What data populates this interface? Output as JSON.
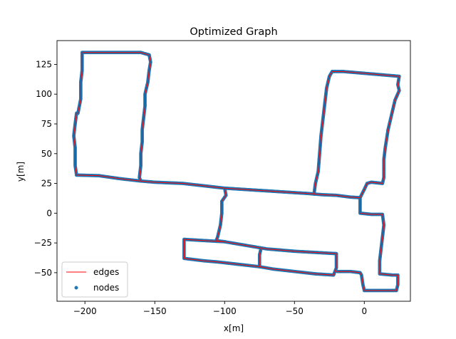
{
  "chart_data": {
    "type": "scatter",
    "title": "Optimized Graph",
    "xlabel": "x[m]",
    "ylabel": "y[m]",
    "xlim": [
      -220,
      33
    ],
    "ylim": [
      -74,
      145
    ],
    "x_ticks": [
      -200,
      -150,
      -100,
      -50,
      0
    ],
    "y_ticks": [
      -50,
      -25,
      0,
      25,
      50,
      75,
      100,
      125
    ],
    "legend_position": "lower-left",
    "grid": false,
    "series": [
      {
        "name": "edges",
        "kind": "line",
        "color": "#ff0000",
        "paths": [
          [
            [
              -206,
              32
            ],
            [
              -190,
              31.5
            ],
            [
              -175,
              29
            ],
            [
              -160,
              27
            ],
            [
              -150,
              26
            ],
            [
              -130,
              25
            ],
            [
              -115,
              23
            ],
            [
              -100,
              21
            ],
            [
              -80,
              19.5
            ],
            [
              -60,
              18
            ],
            [
              -40,
              16.5
            ],
            [
              -30,
              15.5
            ],
            [
              -20,
              15
            ],
            [
              -10,
              13.5
            ],
            [
              -3,
              13
            ]
          ],
          [
            [
              -206,
              32
            ],
            [
              -207,
              40
            ],
            [
              -207,
              55
            ],
            [
              -208,
              65
            ],
            [
              -207,
              75
            ],
            [
              -206,
              84
            ],
            [
              -205,
              84
            ],
            [
              -203,
              96
            ],
            [
              -203,
              110
            ],
            [
              -202,
              120
            ],
            [
              -202,
              128
            ],
            [
              -202,
              135
            ],
            [
              -180,
              135
            ],
            [
              -170,
              135
            ],
            [
              -160,
              135
            ],
            [
              -154,
              133
            ],
            [
              -153,
              127
            ],
            [
              -154,
              120
            ],
            [
              -155,
              110
            ],
            [
              -157,
              100
            ],
            [
              -157,
              90
            ],
            [
              -158,
              80
            ],
            [
              -159,
              70
            ],
            [
              -159,
              60
            ],
            [
              -160,
              50
            ],
            [
              -160,
              40
            ],
            [
              -161,
              30
            ],
            [
              -160,
              27
            ]
          ],
          [
            [
              -36,
              16
            ],
            [
              -35,
              25
            ],
            [
              -33,
              35
            ],
            [
              -32,
              50
            ],
            [
              -31,
              65
            ],
            [
              -30,
              75
            ],
            [
              -29,
              85
            ],
            [
              -28,
              95
            ],
            [
              -27,
              105
            ],
            [
              -25,
              115
            ],
            [
              -23,
              119
            ],
            [
              -15,
              119
            ],
            [
              -5,
              118
            ],
            [
              5,
              117
            ],
            [
              15,
              116
            ],
            [
              25,
              115
            ],
            [
              24,
              108
            ],
            [
              25,
              103
            ],
            [
              22,
              95
            ],
            [
              19,
              80
            ],
            [
              17,
              70
            ],
            [
              15,
              55
            ],
            [
              14,
              45
            ],
            [
              14,
              30
            ],
            [
              13,
              25
            ],
            [
              5,
              26
            ],
            [
              2,
              25
            ],
            [
              0,
              20
            ],
            [
              -3,
              13
            ]
          ],
          [
            [
              -3,
              13
            ],
            [
              -3,
              5
            ],
            [
              -3,
              0
            ],
            [
              5,
              -1
            ],
            [
              13,
              -1
            ],
            [
              14,
              -10
            ],
            [
              13,
              -20
            ],
            [
              12,
              -30
            ],
            [
              11,
              -40
            ],
            [
              11,
              -48
            ],
            [
              11,
              -51
            ],
            [
              20,
              -52
            ],
            [
              24,
              -52
            ],
            [
              24,
              -60
            ],
            [
              23,
              -65
            ],
            [
              10,
              -65
            ],
            [
              0,
              -65
            ],
            [
              -1,
              -60
            ],
            [
              -2,
              -52
            ],
            [
              -3,
              -50
            ],
            [
              -10,
              -49
            ],
            [
              -20,
              -49
            ]
          ],
          [
            [
              -100,
              21
            ],
            [
              -99,
              15
            ],
            [
              -102,
              10
            ],
            [
              -102,
              0
            ],
            [
              -103,
              -10
            ],
            [
              -105,
              -20
            ],
            [
              -106,
              -23
            ],
            [
              -100,
              -24
            ],
            [
              -85,
              -27
            ],
            [
              -70,
              -30
            ],
            [
              -50,
              -32
            ],
            [
              -35,
              -33
            ],
            [
              -20,
              -34
            ],
            [
              -20,
              -40
            ],
            [
              -20,
              -46
            ],
            [
              -22,
              -52
            ],
            [
              -35,
              -51
            ],
            [
              -50,
              -49
            ],
            [
              -65,
              -47
            ],
            [
              -75,
              -45
            ],
            [
              -90,
              -43
            ],
            [
              -105,
              -41
            ],
            [
              -115,
              -40
            ],
            [
              -129,
              -38
            ],
            [
              -129,
              -30
            ],
            [
              -129,
              -22
            ],
            [
              -115,
              -23
            ],
            [
              -100,
              -24
            ]
          ],
          [
            [
              -75,
              -45
            ],
            [
              -75,
              -35
            ],
            [
              -74,
              -30
            ]
          ]
        ]
      },
      {
        "name": "nodes",
        "kind": "points",
        "color": "#1f77b4"
      }
    ]
  }
}
